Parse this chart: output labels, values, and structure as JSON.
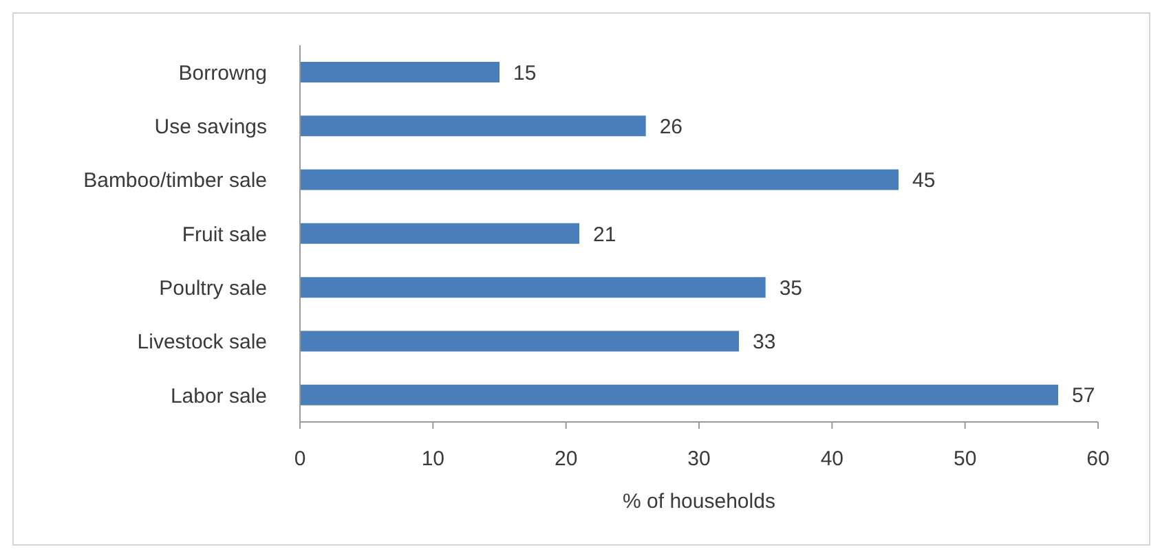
{
  "chart_data": {
    "type": "bar",
    "orientation": "horizontal",
    "categories": [
      "Borrowng",
      "Use savings",
      "Bamboo/timber sale",
      "Fruit sale",
      "Poultry sale",
      "Livestock sale",
      "Labor sale"
    ],
    "values": [
      15,
      26,
      45,
      21,
      35,
      33,
      57
    ],
    "color": "#4a7ebb",
    "xlabel": "% of households",
    "xlim": [
      0,
      60
    ],
    "xticks": [
      0,
      10,
      20,
      30,
      40,
      50,
      60
    ],
    "data_labels": true
  }
}
